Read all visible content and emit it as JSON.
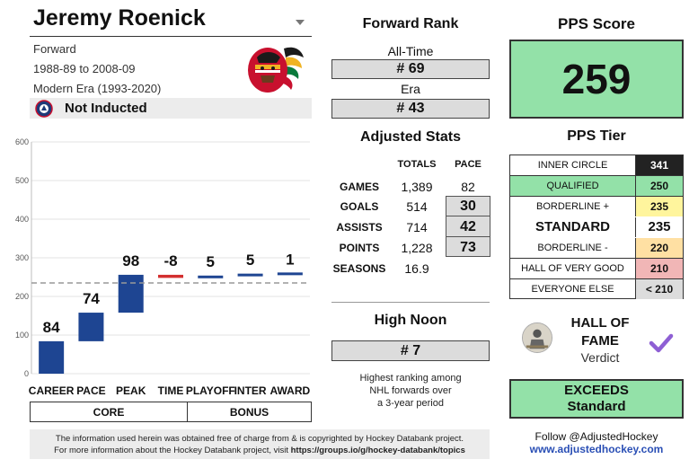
{
  "player": {
    "name": "Jeremy Roenick",
    "position": "Forward",
    "seasons_span": "1988-89 to 2008-09",
    "era": "Modern Era (1993-2020)",
    "hof_status": "Not Inducted",
    "team_logo_icon": "chicago-blackhawks-logo"
  },
  "forward_rank": {
    "title": "Forward Rank",
    "all_time_label": "All-Time",
    "all_time_value": "# 69",
    "era_label": "Era",
    "era_value": "# 43"
  },
  "adjusted_stats": {
    "title": "Adjusted Stats",
    "col_totals": "TOTALS",
    "col_pace": "PACE",
    "rows": [
      {
        "label": "GAMES",
        "total": "1,389",
        "pace": "82"
      },
      {
        "label": "GOALS",
        "total": "514",
        "pace": "30"
      },
      {
        "label": "ASSISTS",
        "total": "714",
        "pace": "42"
      },
      {
        "label": "POINTS",
        "total": "1,228",
        "pace": "73"
      },
      {
        "label": "SEASONS",
        "total": "16.9",
        "pace": ""
      }
    ]
  },
  "high_noon": {
    "title": "High Noon",
    "value": "# 7",
    "description_line1": "Highest ranking among",
    "description_line2": "NHL forwards over",
    "description_line3": "a 3-year period"
  },
  "pps": {
    "title": "PPS Score",
    "score": "259",
    "score_color": "#93e1a8"
  },
  "pps_tier": {
    "title": "PPS Tier",
    "tiers": [
      {
        "name": "INNER CIRCLE",
        "value": "341",
        "name_bg": "#ffffff",
        "val_bg": "#222222",
        "val_color": "#ffffff"
      },
      {
        "name": "QUALIFIED",
        "value": "250",
        "name_bg": "#93e1a8",
        "val_bg": "#93e1a8",
        "val_color": "#111111"
      },
      {
        "name": "BORDERLINE +",
        "value": "235",
        "name_bg": "#ffffff",
        "val_bg": "#fff59d",
        "val_color": "#111111"
      },
      {
        "name": "BORDERLINE -",
        "value": "220",
        "name_bg": "#ffffff",
        "val_bg": "#ffe0a3",
        "val_color": "#111111"
      },
      {
        "name": "HALL OF VERY GOOD",
        "value": "210",
        "name_bg": "#ffffff",
        "val_bg": "#f1b6b6",
        "val_color": "#111111"
      },
      {
        "name": "EVERYONE ELSE",
        "value": "< 210",
        "name_bg": "#ffffff",
        "val_bg": "#dcdcdc",
        "val_color": "#111111"
      }
    ],
    "standard_label": "STANDARD",
    "standard_value": "235"
  },
  "verdict": {
    "title_line1": "HALL OF",
    "title_line2": "FAME",
    "subtitle": "Verdict",
    "icon": "hall-of-fame-icon",
    "check_icon": "checkmark-icon",
    "check_color": "#8e5fd4",
    "result_line1": "EXCEEDS",
    "result_line2": "Standard"
  },
  "follow": {
    "text": "Follow @AdjustedHockey",
    "url": "www.adjustedhockey.com"
  },
  "footer": {
    "line1": "The information used herein was obtained free of charge from & is copyrighted by Hockey Databank project.",
    "line2_prefix": "For more information about the Hockey Databank project, visit ",
    "line2_link": "https://groups.io/g/hockey-databank/topics"
  },
  "chart_data": {
    "type": "bar",
    "subtype": "waterfall",
    "categories": [
      "CAREER",
      "PACE",
      "PEAK",
      "TIME",
      "PLAYOFF",
      "INTER",
      "AWARD"
    ],
    "values": [
      84,
      74,
      98,
      -8,
      5,
      5,
      1
    ],
    "data_labels": [
      "84",
      "74",
      "98",
      "-8",
      "5",
      "5",
      "1"
    ],
    "ylim": [
      0,
      600
    ],
    "yticks": [
      0,
      100,
      200,
      300,
      400,
      500,
      600
    ],
    "reference_line": 235,
    "groups": [
      {
        "label": "CORE",
        "categories": [
          "CAREER",
          "PACE",
          "PEAK",
          "TIME"
        ]
      },
      {
        "label": "BONUS",
        "categories": [
          "PLAYOFF",
          "INTER",
          "AWARD"
        ]
      }
    ],
    "colors": {
      "positive": "#1e4592",
      "negative": "#d32f2f",
      "reference": "#999999"
    },
    "grid": true
  }
}
